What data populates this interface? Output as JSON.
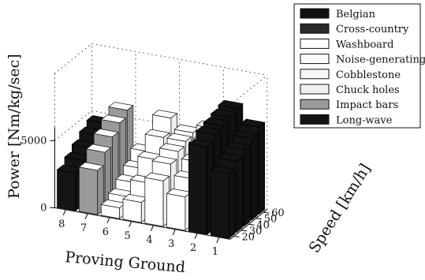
{
  "chart_data": {
    "type": "bar3d",
    "title": "",
    "xlabel": "Proving Ground",
    "ylabel": "Speed [km/h]",
    "zlabel": "Power [Nm/kg/sec]",
    "z_ticks": [
      "0",
      "5000"
    ],
    "zlim": [
      0,
      10000
    ],
    "x_ticks": [
      "8",
      "7",
      "6",
      "5",
      "4",
      "3",
      "2",
      "1"
    ],
    "y_ticks": [
      "20",
      "30",
      "40",
      "50",
      "60"
    ],
    "legend": [
      {
        "label": "Belgian",
        "color": "#111111"
      },
      {
        "label": "Cross-country",
        "color": "#2a2a2a"
      },
      {
        "label": "Washboard",
        "color": "#ffffff"
      },
      {
        "label": "Noise-generating",
        "color": "#fbfbfb"
      },
      {
        "label": "Cobblestone",
        "color": "#f6f6f6"
      },
      {
        "label": "Chuck holes",
        "color": "#f0f0f0"
      },
      {
        "label": "Impact bars",
        "color": "#9a9a9a"
      },
      {
        "label": "Long-wave",
        "color": "#151515"
      }
    ],
    "series": [
      {
        "ground": "8",
        "color": "#151515",
        "values": [
          2800,
          3300,
          3800,
          4300,
          4700
        ]
      },
      {
        "ground": "7",
        "color": "#9a9a9a",
        "values": [
          3300,
          4200,
          4900,
          5500,
          6000
        ]
      },
      {
        "ground": "6",
        "color": "#ffffff",
        "values": [
          800,
          1200,
          1800,
          2400,
          3200
        ]
      },
      {
        "ground": "5",
        "color": "#ffffff",
        "values": [
          1500,
          2500,
          3800,
          5000,
          6000
        ]
      },
      {
        "ground": "4",
        "color": "#ffffff",
        "values": [
          3400,
          4200,
          4700,
          5000,
          5200
        ]
      },
      {
        "ground": "3",
        "color": "#ffffff",
        "values": [
          2500,
          3400,
          4200,
          5000,
          5800
        ]
      },
      {
        "ground": "2",
        "color": "#141414",
        "values": [
          6500,
          7000,
          7200,
          7400,
          7600
        ]
      },
      {
        "ground": "1",
        "color": "#141414",
        "values": [
          4800,
          5300,
          5700,
          6100,
          6500
        ]
      }
    ]
  }
}
